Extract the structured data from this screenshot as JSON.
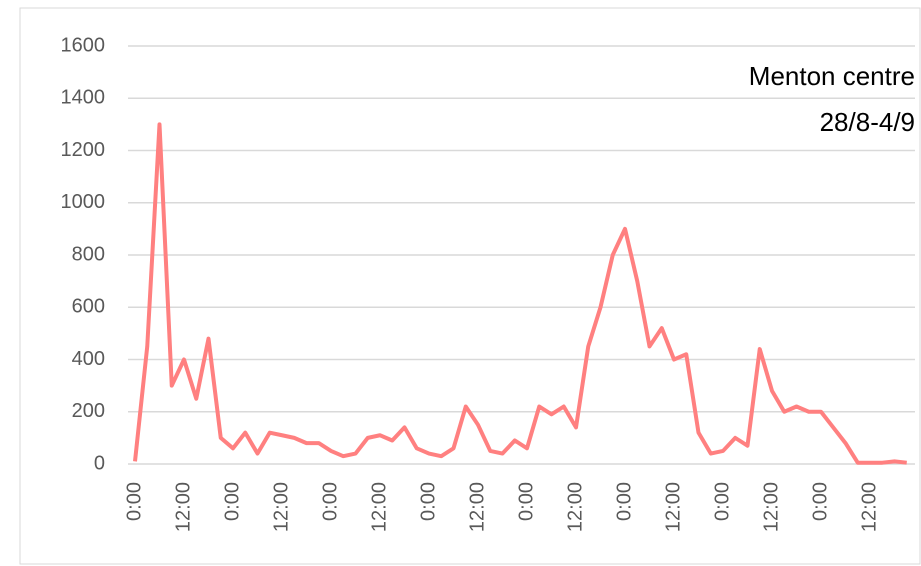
{
  "chart_data": {
    "type": "line",
    "title": "Menton centre",
    "subtitle": "28/8-4/9",
    "categories": [
      "0:00",
      null,
      null,
      null,
      "12:00",
      null,
      null,
      null,
      "0:00",
      null,
      null,
      null,
      "12:00",
      null,
      null,
      null,
      "0:00",
      null,
      null,
      null,
      "12:00",
      null,
      null,
      null,
      "0:00",
      null,
      null,
      null,
      "12:00",
      null,
      null,
      null,
      "0:00",
      null,
      null,
      null,
      "12:00",
      null,
      null,
      null,
      "0:00",
      null,
      null,
      null,
      "12:00",
      null,
      null,
      null,
      "0:00",
      null,
      null,
      null,
      "12:00",
      null,
      null,
      null,
      "0:00",
      null,
      null,
      null,
      "12:00",
      null,
      null,
      null
    ],
    "series": [
      {
        "name": "Menton centre",
        "color": "#ff8080",
        "values": [
          10,
          450,
          1300,
          300,
          400,
          250,
          480,
          100,
          60,
          120,
          40,
          120,
          110,
          100,
          80,
          80,
          50,
          30,
          40,
          100,
          110,
          90,
          140,
          60,
          40,
          30,
          60,
          220,
          150,
          50,
          40,
          90,
          60,
          220,
          190,
          220,
          140,
          450,
          600,
          800,
          900,
          700,
          450,
          520,
          400,
          420,
          120,
          40,
          50,
          100,
          70,
          440,
          280,
          200,
          220,
          200,
          200,
          140,
          80,
          5,
          5,
          5,
          10,
          5
        ]
      }
    ],
    "ylim": [
      0,
      1600
    ],
    "yticks": [
      0,
      200,
      400,
      600,
      800,
      1000,
      1200,
      1400,
      1600
    ],
    "grid": true
  }
}
